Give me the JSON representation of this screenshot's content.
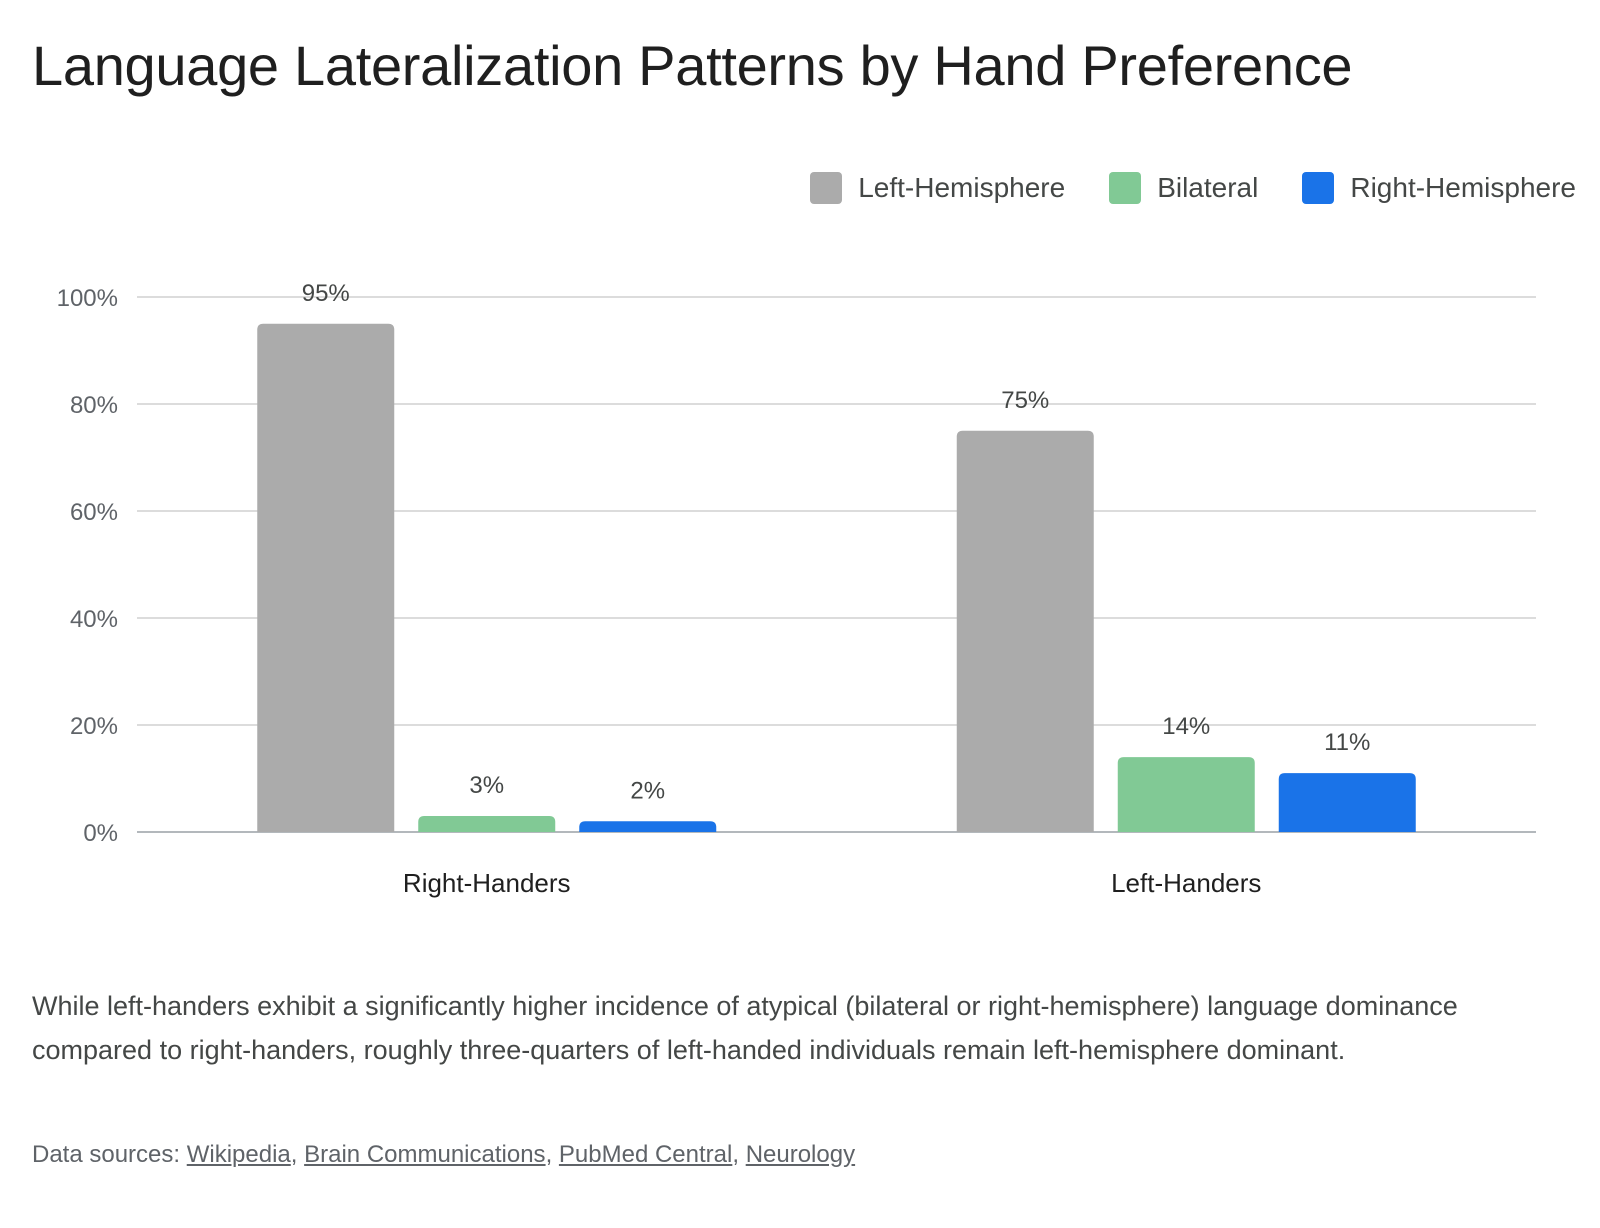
{
  "title": "Language Lateralization Patterns by Hand Preference",
  "legend": [
    {
      "label": "Left-Hemisphere",
      "color": "#ababab"
    },
    {
      "label": "Bilateral",
      "color": "#81c995"
    },
    {
      "label": "Right-Hemisphere",
      "color": "#1a73e8"
    }
  ],
  "chart_data": {
    "type": "bar",
    "categories": [
      "Right-Handers",
      "Left-Handers"
    ],
    "series": [
      {
        "name": "Left-Hemisphere",
        "values": [
          95,
          75
        ],
        "labels": [
          "95%",
          "75%"
        ],
        "color": "#ababab"
      },
      {
        "name": "Bilateral",
        "values": [
          3,
          14
        ],
        "labels": [
          "3%",
          "14%"
        ],
        "color": "#81c995"
      },
      {
        "name": "Right-Hemisphere",
        "values": [
          2,
          11
        ],
        "labels": [
          "2%",
          "11%"
        ],
        "color": "#1a73e8"
      }
    ],
    "ylim": [
      0,
      100
    ],
    "yticks": [
      0,
      20,
      40,
      60,
      80,
      100
    ],
    "ytick_labels": [
      "0%",
      "20%",
      "40%",
      "60%",
      "80%",
      "100%"
    ],
    "xlabel": "",
    "ylabel": "",
    "grid": true,
    "legend_position": "top-right"
  },
  "caption": "While left-handers exhibit a significantly higher incidence of atypical (bilateral or right-hemisphere) language dominance compared to right-handers, roughly three-quarters of left-handed individuals remain left-hemisphere dominant.",
  "sources": {
    "prefix": "Data sources: ",
    "links": [
      "Wikipedia",
      "Brain Communications",
      "PubMed Central",
      "Neurology"
    ]
  }
}
